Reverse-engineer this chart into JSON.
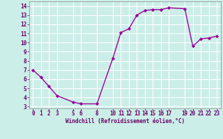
{
  "x": [
    0,
    1,
    2,
    3,
    5,
    6,
    8,
    10,
    11,
    12,
    13,
    14,
    15,
    16,
    17,
    19,
    20,
    21,
    22,
    23
  ],
  "y": [
    7.0,
    6.2,
    5.2,
    4.2,
    3.5,
    3.3,
    3.3,
    8.3,
    11.1,
    11.5,
    13.0,
    13.5,
    13.6,
    13.6,
    13.8,
    13.7,
    9.6,
    10.4,
    10.5,
    10.7
  ],
  "line_color": "#990099",
  "marker_color": "#990099",
  "bg_color": "#cceee8",
  "grid_color": "#ffffff",
  "xlabel": "Windchill (Refroidissement éolien,°C)",
  "xlabel_color": "#660066",
  "tick_color": "#660066",
  "xlim": [
    -0.5,
    23.5
  ],
  "ylim": [
    2.8,
    14.5
  ],
  "yticks": [
    3,
    4,
    5,
    6,
    7,
    8,
    9,
    10,
    11,
    12,
    13,
    14
  ],
  "xticks": [
    0,
    1,
    2,
    3,
    5,
    6,
    8,
    10,
    11,
    12,
    13,
    14,
    15,
    16,
    17,
    19,
    20,
    21,
    22,
    23
  ],
  "xlabel_fontsize": 5.5,
  "tick_fontsize": 5.5,
  "linewidth": 1.0,
  "markersize": 2.2
}
